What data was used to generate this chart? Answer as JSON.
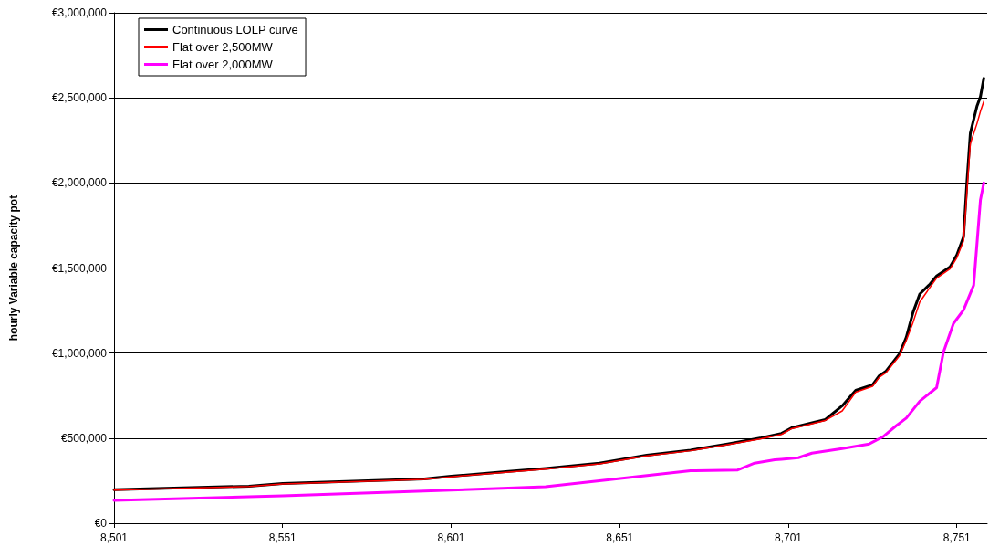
{
  "chart_data": {
    "type": "line",
    "ylabel": "hourly Variable capacity pot",
    "legend": "top left",
    "grid": "y",
    "marker": "none",
    "line_style": "solid",
    "xlim": [
      8501,
      8760
    ],
    "xticks": [
      {
        "value": 8501,
        "label": "8,501"
      },
      {
        "value": 8551,
        "label": "8,551"
      },
      {
        "value": 8601,
        "label": "8,601"
      },
      {
        "value": 8651,
        "label": "8,651"
      },
      {
        "value": 8701,
        "label": "8,701"
      },
      {
        "value": 8751,
        "label": "8,751"
      }
    ],
    "ylim": [
      0,
      3000000
    ],
    "yticks": [
      {
        "value": 0,
        "label": "€0"
      },
      {
        "value": 500000,
        "label": "€500,000"
      },
      {
        "value": 1000000,
        "label": "€1,000,000"
      },
      {
        "value": 1500000,
        "label": "€1,500,000"
      },
      {
        "value": 2000000,
        "label": "€2,000,000"
      },
      {
        "value": 2500000,
        "label": "€2,500,000"
      },
      {
        "value": 3000000,
        "label": "€3,000,000"
      }
    ],
    "series": [
      {
        "name": "Continuous LOLP curve",
        "color": "#000000",
        "x": [
          8501,
          8541,
          8551,
          8593,
          8601,
          8618,
          8629,
          8645,
          8659,
          8672,
          8683,
          8693,
          8699,
          8702,
          8712,
          8717,
          8721,
          8726,
          8728,
          8730,
          8734,
          8736,
          8738,
          8740,
          8743,
          8745,
          8749,
          8751,
          8753,
          8754,
          8755,
          8757,
          8758,
          8759
        ],
        "values": [
          197000,
          218000,
          233000,
          260000,
          276000,
          304000,
          322000,
          353000,
          400000,
          430000,
          466000,
          502000,
          528000,
          561000,
          609000,
          690000,
          781000,
          813000,
          867000,
          894000,
          996000,
          1093000,
          1239000,
          1347000,
          1405000,
          1453000,
          1507000,
          1577000,
          1684000,
          2007000,
          2292000,
          2453000,
          2507000,
          2615000
        ]
      },
      {
        "name": "Flat over 2,500MW",
        "color": "#ff0000",
        "x": [
          8501,
          8541,
          8551,
          8593,
          8601,
          8618,
          8629,
          8645,
          8659,
          8672,
          8683,
          8693,
          8699,
          8702,
          8712,
          8717,
          8721,
          8726,
          8728,
          8730,
          8734,
          8736,
          8738,
          8740,
          8743,
          8745,
          8749,
          8751,
          8753,
          8754,
          8755,
          8757,
          8758,
          8759
        ],
        "values": [
          195000,
          216000,
          231000,
          258000,
          273000,
          301000,
          318000,
          349000,
          396000,
          426000,
          462000,
          497000,
          522000,
          556000,
          604000,
          660000,
          770000,
          805000,
          858000,
          885000,
          985000,
          1075000,
          1180000,
          1300000,
          1385000,
          1440000,
          1495000,
          1560000,
          1660000,
          1950000,
          2230000,
          2350000,
          2420000,
          2480000
        ]
      },
      {
        "name": "Flat over 2,000MW",
        "color": "#ff00ff",
        "x": [
          8501,
          8551,
          8601,
          8618,
          8629,
          8645,
          8672,
          8686,
          8691,
          8697,
          8699,
          8704,
          8708,
          8717,
          8725,
          8729,
          8733,
          8736,
          8740,
          8745,
          8747,
          8750,
          8753,
          8756,
          8757,
          8758,
          8759
        ],
        "values": [
          134000,
          161000,
          194000,
          206000,
          215000,
          250000,
          308000,
          313000,
          353000,
          373000,
          376000,
          385000,
          412000,
          439000,
          466000,
          507000,
          573000,
          618000,
          717000,
          797000,
          1003000,
          1174000,
          1254000,
          1399000,
          1650000,
          1900000,
          2000000
        ]
      }
    ]
  }
}
